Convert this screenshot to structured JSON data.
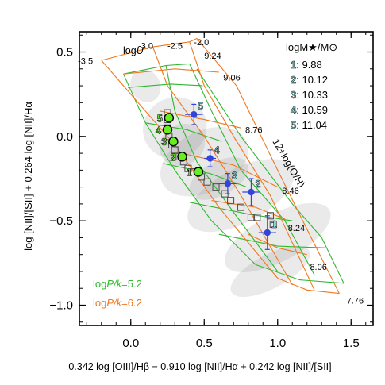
{
  "chart_data": {
    "type": "scatter",
    "title": "",
    "xlabel": "0.342 log [OIII]/Hβ − 0.910 log [NII]/Hα + 0.242 log [NII]/[SII]",
    "ylabel": "log [NII]/[SII] + 0.264 log [NII]/Hα",
    "xlim": [
      -0.35,
      1.65
    ],
    "ylim": [
      -1.12,
      0.62
    ],
    "xticks": [
      {
        "v": 0.0,
        "label": "0.0"
      },
      {
        "v": 0.5,
        "label": "0.5"
      },
      {
        "v": 1.0,
        "label": "1.0"
      },
      {
        "v": 1.5,
        "label": "1.5"
      }
    ],
    "yticks": [
      {
        "v": 0.5,
        "label": "0.5"
      },
      {
        "v": 0.0,
        "label": "0.0"
      },
      {
        "v": -0.5,
        "label": "−0.5"
      },
      {
        "v": -1.0,
        "label": "−1.0"
      }
    ],
    "grid": false,
    "colors": {
      "green": "#2fb82f",
      "orange": "#f07820",
      "blue": "#3344dd",
      "lime": "#66ee22",
      "gray": "#555555"
    },
    "density_contours": [
      {
        "x": 0.1,
        "y": 0.3,
        "rx": 0.1,
        "ry": 0.1
      },
      {
        "x": 0.3,
        "y": 0.05,
        "rx": 0.22,
        "ry": 0.18
      },
      {
        "x": 0.5,
        "y": -0.15,
        "rx": 0.32,
        "ry": 0.18
      },
      {
        "x": 0.75,
        "y": -0.35,
        "rx": 0.4,
        "ry": 0.16
      },
      {
        "x": 1.0,
        "y": -0.6,
        "rx": 0.4,
        "ry": 0.14
      },
      {
        "x": 0.95,
        "y": -0.8,
        "rx": 0.3,
        "ry": 0.1
      },
      {
        "x": 0.35,
        "y": -0.05,
        "rx": 0.16,
        "ry": 0.12
      },
      {
        "x": 0.6,
        "y": -0.25,
        "rx": 0.22,
        "ry": 0.1
      }
    ],
    "logU_labels": [
      {
        "x": -0.36,
        "y": 0.43,
        "label": "-3.5"
      },
      {
        "x": 0.05,
        "y": 0.52,
        "label": "-3.0"
      },
      {
        "x": 0.25,
        "y": 0.52,
        "label": "-2.5"
      },
      {
        "x": 0.43,
        "y": 0.54,
        "label": "-2.0"
      }
    ],
    "logU_title": "log",
    "logU_title_var": "U",
    "metallicity_labels": [
      {
        "x": 0.5,
        "y": 0.46,
        "label": "9.24"
      },
      {
        "x": 0.63,
        "y": 0.33,
        "label": "9.06"
      },
      {
        "x": 0.78,
        "y": 0.02,
        "label": "8.76"
      },
      {
        "x": 1.03,
        "y": -0.34,
        "label": "8.46"
      },
      {
        "x": 1.07,
        "y": -0.56,
        "label": "8.24"
      },
      {
        "x": 1.22,
        "y": -0.79,
        "label": "8.06"
      },
      {
        "x": 1.47,
        "y": -0.99,
        "label": "7.76"
      }
    ],
    "metallicity_title": "12+log(O/H)",
    "grids": [
      {
        "name": "logP/k=5.2",
        "label_prefix": "log",
        "label_var": "P/k",
        "label_value": "=5.2",
        "color": "#2fb82f",
        "constant_Z_lines": [
          [
            [
              -0.05,
              0.37
            ],
            [
              0.24,
              0.42
            ],
            [
              0.4,
              0.43
            ]
          ],
          [
            [
              -0.02,
              0.29
            ],
            [
              0.27,
              0.31
            ],
            [
              0.49,
              0.3
            ]
          ],
          [
            [
              0.1,
              0.08
            ],
            [
              0.38,
              0.04
            ],
            [
              0.62,
              -0.03
            ]
          ],
          [
            [
              0.22,
              -0.16
            ],
            [
              0.54,
              -0.22
            ],
            [
              0.79,
              -0.3
            ]
          ],
          [
            [
              0.4,
              -0.39
            ],
            [
              0.8,
              -0.46
            ],
            [
              1.1,
              -0.5
            ]
          ],
          [
            [
              0.6,
              -0.58
            ],
            [
              1.0,
              -0.65
            ],
            [
              1.32,
              -0.66
            ]
          ],
          [
            [
              0.85,
              -0.76
            ],
            [
              1.15,
              -0.85
            ],
            [
              1.45,
              -0.87
            ]
          ]
        ],
        "constant_U_lines": [
          [
            [
              -0.05,
              0.37
            ],
            [
              0.1,
              0.08
            ],
            [
              0.3,
              -0.2
            ],
            [
              0.55,
              -0.5
            ],
            [
              0.85,
              -0.76
            ]
          ],
          [
            [
              0.24,
              0.42
            ],
            [
              0.3,
              0.15
            ],
            [
              0.45,
              -0.15
            ],
            [
              0.7,
              -0.45
            ],
            [
              1.0,
              -0.8
            ]
          ],
          [
            [
              0.4,
              0.43
            ],
            [
              0.55,
              0.15
            ],
            [
              0.75,
              -0.2
            ],
            [
              1.05,
              -0.5
            ],
            [
              1.25,
              -0.82
            ]
          ],
          [
            [
              0.45,
              0.4
            ],
            [
              0.75,
              0.0
            ],
            [
              1.1,
              -0.4
            ],
            [
              1.3,
              -0.6
            ],
            [
              1.45,
              -0.87
            ]
          ]
        ]
      },
      {
        "name": "logP/k=6.2",
        "label_prefix": "log",
        "label_var": "P/k",
        "label_value": "=6.2",
        "color": "#f07820",
        "constant_Z_lines": [
          [
            [
              -0.2,
              0.45
            ],
            [
              0.15,
              0.53
            ],
            [
              0.4,
              0.56
            ],
            [
              0.45,
              0.58
            ]
          ],
          [
            [
              -0.05,
              0.37
            ],
            [
              0.3,
              0.4
            ],
            [
              0.6,
              0.38
            ]
          ],
          [
            [
              0.2,
              0.15
            ],
            [
              0.5,
              0.1
            ],
            [
              0.75,
              0.05
            ]
          ],
          [
            [
              0.35,
              -0.1
            ],
            [
              0.7,
              -0.17
            ],
            [
              1.0,
              -0.3
            ]
          ],
          [
            [
              0.55,
              -0.38
            ],
            [
              0.85,
              -0.42
            ],
            [
              1.05,
              -0.49
            ]
          ],
          [
            [
              0.8,
              -0.58
            ],
            [
              1.0,
              -0.66
            ],
            [
              1.2,
              -0.7
            ]
          ],
          [
            [
              1.0,
              -0.84
            ],
            [
              1.2,
              -0.91
            ],
            [
              1.42,
              -0.93
            ]
          ]
        ],
        "constant_U_lines": [
          [
            [
              -0.2,
              0.45
            ],
            [
              0.05,
              0.2
            ],
            [
              0.3,
              -0.05
            ],
            [
              0.6,
              -0.42
            ],
            [
              1.0,
              -0.84
            ]
          ],
          [
            [
              0.15,
              0.53
            ],
            [
              0.25,
              0.3
            ],
            [
              0.5,
              0.0
            ],
            [
              0.75,
              -0.35
            ],
            [
              1.1,
              -0.88
            ]
          ],
          [
            [
              0.4,
              0.56
            ],
            [
              0.5,
              0.3
            ],
            [
              0.7,
              0.0
            ],
            [
              0.95,
              -0.35
            ],
            [
              1.25,
              -0.91
            ]
          ],
          [
            [
              0.45,
              0.58
            ],
            [
              0.72,
              0.3
            ],
            [
              1.0,
              -0.2
            ],
            [
              1.2,
              -0.55
            ],
            [
              1.42,
              -0.93
            ]
          ]
        ]
      }
    ],
    "stack_points": {
      "name": "stacks",
      "points": [
        {
          "x": 0.25,
          "y": 0.14
        },
        {
          "x": 0.25,
          "y": 0.1
        },
        {
          "x": 0.25,
          "y": 0.05
        },
        {
          "x": 0.26,
          "y": 0.0
        },
        {
          "x": 0.28,
          "y": -0.05
        },
        {
          "x": 0.3,
          "y": -0.08
        },
        {
          "x": 0.33,
          "y": -0.12
        },
        {
          "x": 0.36,
          "y": -0.15
        },
        {
          "x": 0.39,
          "y": -0.19
        },
        {
          "x": 0.43,
          "y": -0.21
        },
        {
          "x": 0.48,
          "y": -0.24
        },
        {
          "x": 0.52,
          "y": -0.27
        },
        {
          "x": 0.58,
          "y": -0.3
        },
        {
          "x": 0.64,
          "y": -0.34
        },
        {
          "x": 0.68,
          "y": -0.38
        },
        {
          "x": 0.75,
          "y": -0.42
        },
        {
          "x": 0.82,
          "y": -0.48
        },
        {
          "x": 0.86,
          "y": -0.48
        },
        {
          "x": 0.95,
          "y": -0.47
        },
        {
          "x": 0.97,
          "y": -0.52
        }
      ]
    },
    "green_points": [
      {
        "label": "1",
        "x": 0.46,
        "y": -0.21
      },
      {
        "label": "2",
        "x": 0.35,
        "y": -0.12
      },
      {
        "label": "3",
        "x": 0.29,
        "y": -0.03
      },
      {
        "label": "4",
        "x": 0.25,
        "y": 0.04
      },
      {
        "label": "5",
        "x": 0.26,
        "y": 0.11
      }
    ],
    "blue_points": [
      {
        "label": "1",
        "x": 0.93,
        "y": -0.57,
        "xerr": 0.06,
        "yerr": 0.1
      },
      {
        "label": "2",
        "x": 0.82,
        "y": -0.33,
        "xerr": 0.06,
        "yerr": 0.08
      },
      {
        "label": "3",
        "x": 0.66,
        "y": -0.28,
        "xerr": 0.06,
        "yerr": 0.06
      },
      {
        "label": "4",
        "x": 0.54,
        "y": -0.13,
        "xerr": 0.04,
        "yerr": 0.05
      },
      {
        "label": "5",
        "x": 0.43,
        "y": 0.13,
        "xerr": 0.06,
        "yerr": 0.06
      }
    ],
    "mass_legend": {
      "title": "logM★/M⊙",
      "entries": [
        {
          "num": "1",
          "value": ": 9.88"
        },
        {
          "num": "2",
          "value": ": 10.12"
        },
        {
          "num": "3",
          "value": ": 10.33"
        },
        {
          "num": "4",
          "value": ": 10.59"
        },
        {
          "num": "5",
          "value": ": 11.04"
        }
      ]
    }
  }
}
